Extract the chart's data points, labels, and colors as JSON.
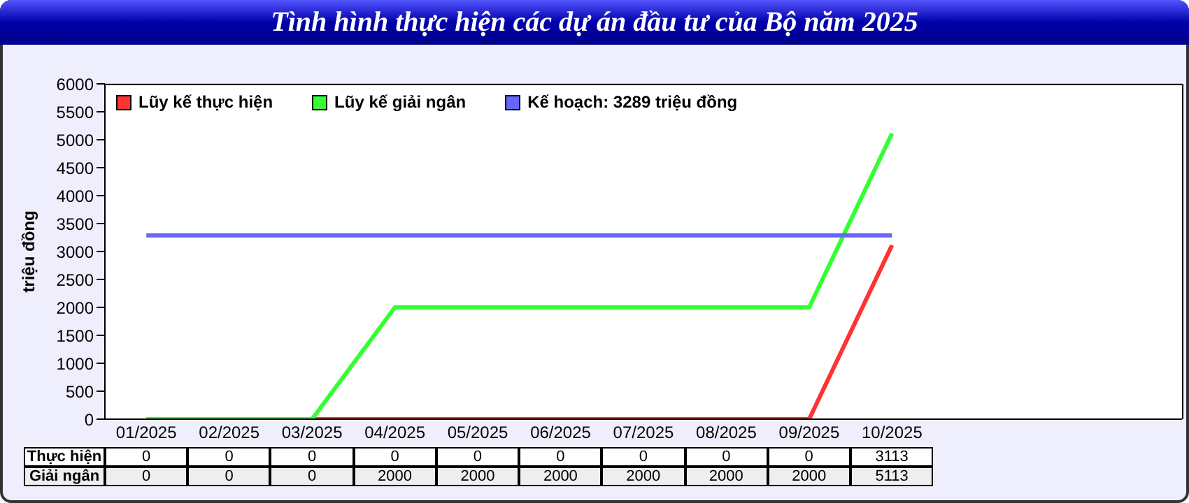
{
  "chart_data": {
    "type": "line",
    "title": "Tình hình thực hiện các dự án đầu tư của Bộ năm 2025",
    "ylabel": "triệu đồng",
    "categories": [
      "01/2025",
      "02/2025",
      "03/2025",
      "04/2025",
      "05/2025",
      "06/2025",
      "07/2025",
      "08/2025",
      "09/2025",
      "10/2025",
      null,
      null,
      null
    ],
    "series": [
      {
        "name": "Lũy kế thực hiện",
        "color": "#ff3333",
        "values": [
          0,
          0,
          0,
          0,
          0,
          0,
          0,
          0,
          0,
          3113,
          null,
          null,
          null
        ],
        "value_labels": [
          "0",
          "0",
          "0",
          "0",
          "0",
          "0",
          "0",
          "0",
          "0",
          "3113",
          null,
          null,
          null
        ]
      },
      {
        "name": "Lũy kế giải ngân",
        "color": "#33ff33",
        "values": [
          0,
          0,
          0,
          2000,
          2000,
          2000,
          2000,
          2000,
          2000,
          5113,
          null,
          null,
          null
        ],
        "value_labels": [
          "0",
          "0",
          "0",
          "2000",
          "2000",
          "2000",
          "2000",
          "2000",
          "2000",
          "5113",
          null,
          null,
          null
        ]
      },
      {
        "name": "Kế hoạch: 3289 triệu đồng",
        "color": "#6666ff",
        "values": [
          3289,
          3289,
          3289,
          3289,
          3289,
          3289,
          3289,
          3289,
          3289,
          3289,
          null,
          null,
          null
        ]
      }
    ],
    "annotations": [
      "Thực hiện",
      "Giải ngân"
    ],
    "ylim": [
      0,
      6000
    ],
    "yticks": [
      0,
      500,
      1000,
      1500,
      2000,
      2500,
      3000,
      3500,
      4000,
      4500,
      5000,
      5500,
      6000
    ],
    "grid": true,
    "legend": "top left",
    "marker": "none",
    "line_style": "solid"
  }
}
